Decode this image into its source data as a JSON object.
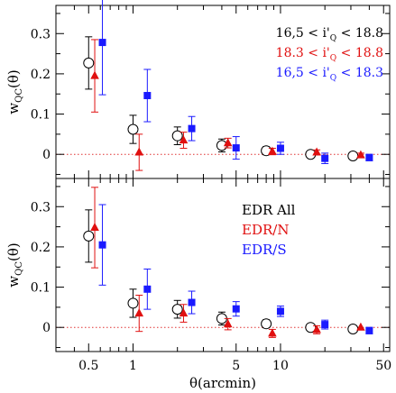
{
  "chart_data": [
    {
      "type": "scatter",
      "panel": "top",
      "x_scale": "log",
      "xlim": [
        0.3,
        55
      ],
      "ylim": [
        -0.06,
        0.37
      ],
      "ylabel": "w_QC(θ)",
      "xlabel": "",
      "yticks": [
        "0",
        "0.1",
        "0.2",
        "0.3"
      ],
      "zero_line": {
        "y": 0,
        "style": "dotted",
        "color": "#e03030"
      },
      "legend_placement": "top-right",
      "series": [
        {
          "name": "16.5 < i'_Q < 18.8",
          "legend_text": "16,5 < i'",
          "legend_sub": "Q",
          "legend_tail": " < 18.8",
          "marker": "open-circle",
          "color": "#000000",
          "points": [
            {
              "x": 0.5,
              "y": 0.227,
              "err": 0.065
            },
            {
              "x": 1.0,
              "y": 0.062,
              "err": 0.035
            },
            {
              "x": 2.0,
              "y": 0.046,
              "err": 0.022
            },
            {
              "x": 4.0,
              "y": 0.022,
              "err": 0.016
            },
            {
              "x": 8.0,
              "y": 0.009,
              "err": 0.01
            },
            {
              "x": 16.0,
              "y": 0.0,
              "err": 0.008
            },
            {
              "x": 31.0,
              "y": -0.004,
              "err": 0.008
            }
          ]
        },
        {
          "name": "18.3 < i'_Q < 18.8",
          "legend_text": "18.3 < i'",
          "legend_sub": "Q",
          "legend_tail": " < 18.8",
          "marker": "filled-triangle",
          "color": "#e01010",
          "points": [
            {
              "x": 0.55,
              "y": 0.195,
              "err": 0.09
            },
            {
              "x": 1.1,
              "y": 0.005,
              "err": 0.045
            },
            {
              "x": 2.2,
              "y": 0.035,
              "err": 0.02
            },
            {
              "x": 4.4,
              "y": 0.028,
              "err": 0.012
            },
            {
              "x": 8.8,
              "y": 0.007,
              "err": 0.008
            },
            {
              "x": 17.6,
              "y": 0.005,
              "err": 0.006
            },
            {
              "x": 35.0,
              "y": -0.002,
              "err": 0.005
            }
          ]
        },
        {
          "name": "16.5 < i'_Q < 18.3",
          "legend_text": "16,5 < i'",
          "legend_sub": "Q",
          "legend_tail": " < 18.3",
          "marker": "filled-square",
          "color": "#1a1aff",
          "points": [
            {
              "x": 0.62,
              "y": 0.278,
              "err": 0.13
            },
            {
              "x": 1.25,
              "y": 0.146,
              "err": 0.065
            },
            {
              "x": 2.5,
              "y": 0.064,
              "err": 0.03
            },
            {
              "x": 5.0,
              "y": 0.016,
              "err": 0.028
            },
            {
              "x": 10.0,
              "y": 0.015,
              "err": 0.015
            },
            {
              "x": 20.0,
              "y": -0.01,
              "err": 0.013
            },
            {
              "x": 40.0,
              "y": -0.008,
              "err": 0.008
            }
          ]
        }
      ]
    },
    {
      "type": "scatter",
      "panel": "bottom",
      "x_scale": "log",
      "xlim": [
        0.3,
        55
      ],
      "ylim": [
        -0.06,
        0.37
      ],
      "ylabel": "w_QC(θ)",
      "xlabel": "θ(arcmin)",
      "xticks": [
        "0.5",
        "1",
        "5",
        "10",
        "50"
      ],
      "yticks": [
        "0",
        "0.1",
        "0.2",
        "0.3"
      ],
      "zero_line": {
        "y": 0,
        "style": "dotted",
        "color": "#e03030"
      },
      "legend_placement": "top-right",
      "series": [
        {
          "name": "EDR All",
          "marker": "open-circle",
          "color": "#000000",
          "points": [
            {
              "x": 0.5,
              "y": 0.227,
              "err": 0.065
            },
            {
              "x": 1.0,
              "y": 0.06,
              "err": 0.035
            },
            {
              "x": 2.0,
              "y": 0.045,
              "err": 0.022
            },
            {
              "x": 4.0,
              "y": 0.022,
              "err": 0.016
            },
            {
              "x": 8.0,
              "y": 0.009,
              "err": 0.01
            },
            {
              "x": 16.0,
              "y": 0.0,
              "err": 0.008
            },
            {
              "x": 31.0,
              "y": -0.004,
              "err": 0.008
            }
          ]
        },
        {
          "name": "EDR/N",
          "marker": "filled-triangle",
          "color": "#e01010",
          "points": [
            {
              "x": 0.55,
              "y": 0.248,
              "err": 0.1
            },
            {
              "x": 1.1,
              "y": 0.035,
              "err": 0.045
            },
            {
              "x": 2.2,
              "y": 0.035,
              "err": 0.022
            },
            {
              "x": 4.4,
              "y": 0.008,
              "err": 0.014
            },
            {
              "x": 8.8,
              "y": -0.015,
              "err": 0.01
            },
            {
              "x": 17.6,
              "y": -0.006,
              "err": 0.01
            },
            {
              "x": 35.0,
              "y": 0.0,
              "err": 0.0
            }
          ]
        },
        {
          "name": "EDR/S",
          "marker": "filled-square",
          "color": "#1a1aff",
          "points": [
            {
              "x": 0.62,
              "y": 0.205,
              "err": 0.1
            },
            {
              "x": 1.25,
              "y": 0.095,
              "err": 0.05
            },
            {
              "x": 2.5,
              "y": 0.062,
              "err": 0.028
            },
            {
              "x": 5.0,
              "y": 0.046,
              "err": 0.018
            },
            {
              "x": 10.0,
              "y": 0.04,
              "err": 0.013
            },
            {
              "x": 20.0,
              "y": 0.007,
              "err": 0.011
            },
            {
              "x": 40.0,
              "y": -0.008,
              "err": 0.008
            }
          ]
        }
      ]
    }
  ]
}
